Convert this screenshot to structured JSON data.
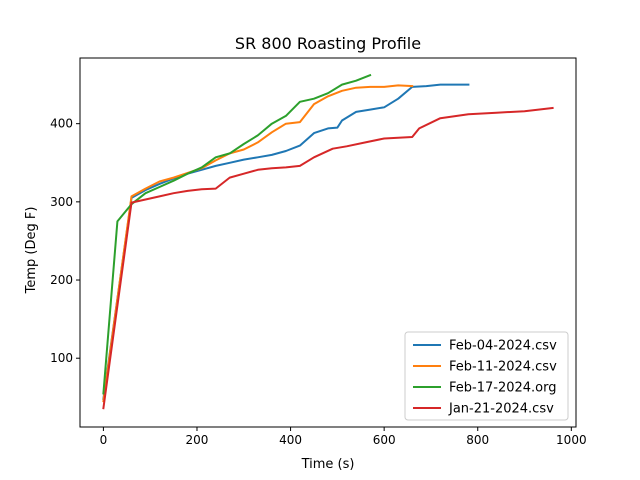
{
  "chart_data": {
    "type": "line",
    "title": "SR 800 Roasting Profile",
    "xlabel": "Time (s)",
    "ylabel": "Temp (Deg F)",
    "xlim": [
      -50,
      1010
    ],
    "ylim": [
      12,
      484
    ],
    "xticks": [
      0,
      200,
      400,
      600,
      800,
      1000
    ],
    "yticks": [
      100,
      200,
      300,
      400
    ],
    "grid": false,
    "legend_position": "lower right",
    "series": [
      {
        "name": "Feb-04-2024.csv",
        "color": "#1f77b4",
        "points": [
          [
            0,
            48
          ],
          [
            60,
            305
          ],
          [
            90,
            315
          ],
          [
            120,
            323
          ],
          [
            150,
            330
          ],
          [
            180,
            336
          ],
          [
            210,
            341
          ],
          [
            240,
            346
          ],
          [
            270,
            350
          ],
          [
            300,
            354
          ],
          [
            330,
            357
          ],
          [
            360,
            360
          ],
          [
            390,
            365
          ],
          [
            420,
            372
          ],
          [
            450,
            388
          ],
          [
            480,
            394
          ],
          [
            500,
            395
          ],
          [
            510,
            404
          ],
          [
            540,
            415
          ],
          [
            570,
            418
          ],
          [
            600,
            421
          ],
          [
            630,
            432
          ],
          [
            660,
            447
          ],
          [
            690,
            448
          ],
          [
            720,
            450
          ],
          [
            750,
            450
          ],
          [
            780,
            450
          ]
        ]
      },
      {
        "name": "Feb-11-2024.csv",
        "color": "#ff7f0e",
        "points": [
          [
            0,
            45
          ],
          [
            60,
            307
          ],
          [
            90,
            317
          ],
          [
            120,
            326
          ],
          [
            150,
            331
          ],
          [
            180,
            337
          ],
          [
            210,
            343
          ],
          [
            240,
            353
          ],
          [
            270,
            362
          ],
          [
            300,
            367
          ],
          [
            330,
            376
          ],
          [
            360,
            389
          ],
          [
            390,
            400
          ],
          [
            420,
            402
          ],
          [
            450,
            425
          ],
          [
            480,
            435
          ],
          [
            510,
            442
          ],
          [
            540,
            446
          ],
          [
            570,
            447
          ],
          [
            600,
            447
          ],
          [
            630,
            449
          ],
          [
            660,
            448
          ]
        ]
      },
      {
        "name": "Feb-17-2024.org",
        "color": "#2ca02c",
        "points": [
          [
            0,
            55
          ],
          [
            30,
            275
          ],
          [
            60,
            297
          ],
          [
            90,
            311
          ],
          [
            120,
            319
          ],
          [
            150,
            327
          ],
          [
            180,
            336
          ],
          [
            210,
            344
          ],
          [
            240,
            357
          ],
          [
            270,
            362
          ],
          [
            300,
            374
          ],
          [
            330,
            385
          ],
          [
            360,
            400
          ],
          [
            390,
            410
          ],
          [
            420,
            428
          ],
          [
            450,
            432
          ],
          [
            480,
            439
          ],
          [
            510,
            450
          ],
          [
            540,
            455
          ],
          [
            570,
            462
          ]
        ]
      },
      {
        "name": "Jan-21-2024.csv",
        "color": "#d62728",
        "points": [
          [
            0,
            36
          ],
          [
            60,
            299
          ],
          [
            90,
            303
          ],
          [
            120,
            307
          ],
          [
            150,
            311
          ],
          [
            180,
            314
          ],
          [
            210,
            316
          ],
          [
            240,
            317
          ],
          [
            270,
            331
          ],
          [
            300,
            336
          ],
          [
            330,
            341
          ],
          [
            360,
            343
          ],
          [
            390,
            344
          ],
          [
            420,
            346
          ],
          [
            450,
            357
          ],
          [
            490,
            368
          ],
          [
            520,
            371
          ],
          [
            560,
            376
          ],
          [
            600,
            381
          ],
          [
            630,
            382
          ],
          [
            660,
            383
          ],
          [
            675,
            394
          ],
          [
            720,
            407
          ],
          [
            780,
            412
          ],
          [
            840,
            414
          ],
          [
            900,
            416
          ],
          [
            960,
            420
          ]
        ]
      }
    ]
  }
}
